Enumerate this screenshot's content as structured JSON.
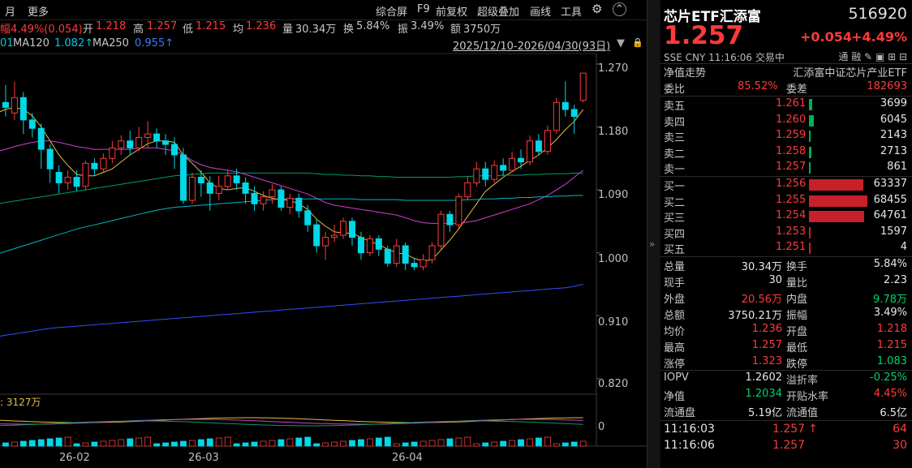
{
  "toolbar": {
    "left": [
      "月",
      "更多"
    ],
    "right": [
      "综合屏",
      "F9",
      "前复权",
      "超级叠加",
      "画线",
      "工具"
    ],
    "gear_icon": "gear-icon",
    "up_icon": "up-arrow-icon"
  },
  "quote_line": {
    "change_partial": "幅4.49%(0.054)",
    "open_label": "开",
    "open": "1.218",
    "high_label": "高",
    "high": "1.257",
    "low_label": "低",
    "low": "1.215",
    "avg_label": "均",
    "avg": "1.236",
    "vol_label": "量",
    "vol": "30.34万",
    "turn_label": "换",
    "turn": "5.84%",
    "amp_label": "振",
    "amp": "3.49%",
    "amt_label": "额",
    "amt": "3750万"
  },
  "ma_line": {
    "ma60_partial": "01",
    "ma120_label": "MA120",
    "ma120": "1.082↑",
    "ma250_label": "MA250",
    "ma250": "0.955↑",
    "range": "2025/12/10-2026/04/30(93日)"
  },
  "y_axis": [
    "1.270",
    "1.180",
    "1.090",
    "1.000",
    "0.910",
    "0.820"
  ],
  "x_axis": [
    "26-02",
    "26-03",
    "26-04"
  ],
  "volume": {
    "label": ": 3127万",
    "zero": "0"
  },
  "chart_data": {
    "type": "candlestick",
    "ylim": [
      0.8,
      1.285
    ],
    "candles": [
      [
        1.19,
        1.215,
        1.18,
        1.232
      ],
      [
        1.215,
        1.208,
        1.195,
        1.24
      ],
      [
        1.2,
        1.222,
        1.19,
        1.245
      ],
      [
        1.222,
        1.19,
        1.17,
        1.23
      ],
      [
        1.19,
        1.178,
        1.165,
        1.2
      ],
      [
        1.178,
        1.148,
        1.12,
        1.185
      ],
      [
        1.148,
        1.12,
        1.1,
        1.155
      ],
      [
        1.115,
        1.1,
        1.085,
        1.125
      ],
      [
        1.1,
        1.108,
        1.09,
        1.118
      ],
      [
        1.108,
        1.095,
        1.088,
        1.118
      ],
      [
        1.095,
        1.128,
        1.09,
        1.132
      ],
      [
        1.128,
        1.12,
        1.11,
        1.135
      ],
      [
        1.12,
        1.135,
        1.115,
        1.142
      ],
      [
        1.135,
        1.15,
        1.128,
        1.16
      ],
      [
        1.15,
        1.16,
        1.14,
        1.168
      ],
      [
        1.16,
        1.15,
        1.14,
        1.175
      ],
      [
        1.15,
        1.165,
        1.145,
        1.18
      ],
      [
        1.165,
        1.17,
        1.15,
        1.188
      ],
      [
        1.17,
        1.16,
        1.15,
        1.178
      ],
      [
        1.16,
        1.155,
        1.14,
        1.17
      ],
      [
        1.155,
        1.14,
        1.12,
        1.165
      ],
      [
        1.14,
        1.075,
        1.07,
        1.15
      ],
      [
        1.075,
        1.108,
        1.07,
        1.115
      ],
      [
        1.108,
        1.1,
        1.08,
        1.118
      ],
      [
        1.1,
        1.085,
        1.06,
        1.11
      ],
      [
        1.085,
        1.095,
        1.075,
        1.11
      ],
      [
        1.095,
        1.11,
        1.09,
        1.118
      ],
      [
        1.11,
        1.1,
        1.09,
        1.12
      ],
      [
        1.1,
        1.085,
        1.07,
        1.108
      ],
      [
        1.085,
        1.07,
        1.06,
        1.095
      ],
      [
        1.07,
        1.08,
        1.06,
        1.088
      ],
      [
        1.08,
        1.09,
        1.07,
        1.098
      ],
      [
        1.09,
        1.065,
        1.06,
        1.095
      ],
      [
        1.065,
        1.078,
        1.055,
        1.085
      ],
      [
        1.078,
        1.06,
        1.05,
        1.085
      ],
      [
        1.06,
        1.04,
        1.03,
        1.068
      ],
      [
        1.04,
        1.01,
        1.0,
        1.048
      ],
      [
        1.01,
        1.022,
        0.99,
        1.03
      ],
      [
        1.022,
        1.025,
        1.015,
        1.04
      ],
      [
        1.025,
        1.045,
        1.02,
        1.05
      ],
      [
        1.045,
        1.022,
        1.01,
        1.05
      ],
      [
        1.022,
        1.0,
        0.99,
        1.03
      ],
      [
        1.0,
        1.02,
        0.995,
        1.025
      ],
      [
        1.02,
        1.005,
        0.995,
        1.025
      ],
      [
        1.005,
        0.985,
        0.98,
        1.01
      ],
      [
        0.985,
        1.01,
        0.98,
        1.02
      ],
      [
        1.01,
        0.985,
        0.975,
        1.015
      ],
      [
        0.985,
        0.98,
        0.975,
        0.992
      ],
      [
        0.98,
        0.99,
        0.975,
        0.998
      ],
      [
        0.99,
        1.01,
        0.985,
        1.015
      ],
      [
        1.01,
        1.055,
        1.005,
        1.06
      ],
      [
        1.055,
        1.04,
        1.03,
        1.06
      ],
      [
        1.04,
        1.08,
        1.035,
        1.085
      ],
      [
        1.08,
        1.1,
        1.075,
        1.11
      ],
      [
        1.1,
        1.12,
        1.095,
        1.13
      ],
      [
        1.12,
        1.105,
        1.095,
        1.13
      ],
      [
        1.105,
        1.125,
        1.1,
        1.132
      ],
      [
        1.125,
        1.118,
        1.11,
        1.135
      ],
      [
        1.118,
        1.135,
        1.115,
        1.145
      ],
      [
        1.135,
        1.13,
        1.12,
        1.148
      ],
      [
        1.13,
        1.16,
        1.125,
        1.168
      ],
      [
        1.16,
        1.145,
        1.14,
        1.17
      ],
      [
        1.145,
        1.175,
        1.14,
        1.182
      ],
      [
        1.175,
        1.215,
        1.17,
        1.222
      ],
      [
        1.215,
        1.205,
        1.195,
        1.245
      ],
      [
        1.205,
        1.195,
        1.17,
        1.212
      ],
      [
        1.218,
        1.257,
        1.215,
        1.257
      ]
    ],
    "ma_series": [
      {
        "color": "#e0c040",
        "values": [
          1.2,
          1.205,
          1.208,
          1.205,
          1.196,
          1.18,
          1.16,
          1.14,
          1.125,
          1.112,
          1.11,
          1.11,
          1.115,
          1.12,
          1.13,
          1.14,
          1.148,
          1.156,
          1.16,
          1.16,
          1.158,
          1.14,
          1.128,
          1.115,
          1.1,
          1.092,
          1.09,
          1.092,
          1.093,
          1.088,
          1.082,
          1.078,
          1.076,
          1.075,
          1.07,
          1.062,
          1.048,
          1.038,
          1.03,
          1.028,
          1.028,
          1.022,
          1.016,
          1.012,
          1.005,
          1.0,
          0.998,
          0.992,
          0.988,
          0.99,
          1.004,
          1.018,
          1.034,
          1.052,
          1.07,
          1.088,
          1.098,
          1.108,
          1.116,
          1.124,
          1.132,
          1.14,
          1.15,
          1.162,
          1.176,
          1.188,
          1.205
        ]
      },
      {
        "color": "#d040d0",
        "values": [
          1.145,
          1.148,
          1.152,
          1.155,
          1.158,
          1.16,
          1.16,
          1.158,
          1.155,
          1.152,
          1.15,
          1.148,
          1.148,
          1.148,
          1.148,
          1.148,
          1.15,
          1.15,
          1.15,
          1.148,
          1.146,
          1.14,
          1.132,
          1.126,
          1.122,
          1.12,
          1.118,
          1.116,
          1.112,
          1.108,
          1.104,
          1.1,
          1.096,
          1.092,
          1.088,
          1.084,
          1.078,
          1.072,
          1.068,
          1.066,
          1.064,
          1.062,
          1.06,
          1.058,
          1.056,
          1.054,
          1.05,
          1.046,
          1.043,
          1.042,
          1.042,
          1.042,
          1.042,
          1.044,
          1.046,
          1.05,
          1.054,
          1.058,
          1.062,
          1.066,
          1.07,
          1.076,
          1.082,
          1.09,
          1.098,
          1.108,
          1.118
        ]
      },
      {
        "color": "#00a060",
        "values": [
          1.07,
          1.072,
          1.074,
          1.076,
          1.078,
          1.08,
          1.082,
          1.084,
          1.086,
          1.088,
          1.09,
          1.092,
          1.094,
          1.096,
          1.098,
          1.1,
          1.102,
          1.104,
          1.106,
          1.108,
          1.11,
          1.111,
          1.112,
          1.113,
          1.114,
          1.114,
          1.114,
          1.114,
          1.114,
          1.114,
          1.114,
          1.114,
          1.114,
          1.114,
          1.114,
          1.114,
          1.113,
          1.112,
          1.112,
          1.111,
          1.111,
          1.11,
          1.11,
          1.109,
          1.109,
          1.108,
          1.108,
          1.108,
          1.108,
          1.108,
          1.108,
          1.108,
          1.109,
          1.109,
          1.11,
          1.11,
          1.11,
          1.111,
          1.111,
          1.111,
          1.112,
          1.112,
          1.113,
          1.113,
          1.113,
          1.114,
          1.114
        ]
      },
      {
        "color": "#00b8c8",
        "values": [
          0.998,
          1.002,
          1.006,
          1.01,
          1.014,
          1.018,
          1.022,
          1.026,
          1.03,
          1.034,
          1.037,
          1.04,
          1.043,
          1.046,
          1.049,
          1.052,
          1.055,
          1.058,
          1.061,
          1.063,
          1.065,
          1.066,
          1.067,
          1.068,
          1.069,
          1.07,
          1.071,
          1.072,
          1.073,
          1.074,
          1.075,
          1.076,
          1.077,
          1.077,
          1.077,
          1.077,
          1.077,
          1.077,
          1.077,
          1.077,
          1.077,
          1.076,
          1.076,
          1.076,
          1.076,
          1.076,
          1.075,
          1.075,
          1.075,
          1.075,
          1.075,
          1.075,
          1.075,
          1.076,
          1.076,
          1.077,
          1.077,
          1.078,
          1.078,
          1.079,
          1.079,
          1.08,
          1.08,
          1.081,
          1.081,
          1.082,
          1.082
        ]
      },
      {
        "color": "#3050ff",
        "values": [
          0.88,
          0.882,
          0.884,
          0.886,
          0.888,
          0.89,
          0.892,
          0.893,
          0.894,
          0.895,
          0.896,
          0.897,
          0.898,
          0.899,
          0.9,
          0.901,
          0.902,
          0.903,
          0.904,
          0.905,
          0.906,
          0.907,
          0.908,
          0.909,
          0.91,
          0.911,
          0.912,
          0.913,
          0.914,
          0.915,
          0.916,
          0.917,
          0.918,
          0.919,
          0.92,
          0.921,
          0.922,
          0.923,
          0.924,
          0.925,
          0.926,
          0.927,
          0.928,
          0.929,
          0.93,
          0.931,
          0.932,
          0.933,
          0.934,
          0.935,
          0.936,
          0.937,
          0.938,
          0.939,
          0.94,
          0.941,
          0.942,
          0.943,
          0.944,
          0.945,
          0.946,
          0.947,
          0.948,
          0.949,
          0.95,
          0.952,
          0.955
        ]
      }
    ]
  },
  "quote": {
    "name": "芯片ETF汇添富",
    "code": "516920",
    "price": "1.257",
    "change": "+0.054",
    "pct": "+4.49%",
    "meta": "SSE  CNY  11:16:06  交易中",
    "tools": "通 融 ✎ ▣ ⊞ ⊟",
    "nav_trend": "净值走势",
    "fund_full": "汇添富中证芯片产业ETF",
    "wei_bi_label": "委比",
    "wei_bi": "85.52%",
    "wei_cha_label": "委差",
    "wei_cha": "182693"
  },
  "asks": [
    {
      "label": "卖五",
      "price": "1.261",
      "vol": "3699"
    },
    {
      "label": "卖四",
      "price": "1.260",
      "vol": "6045"
    },
    {
      "label": "卖三",
      "price": "1.259",
      "vol": "2143"
    },
    {
      "label": "卖二",
      "price": "1.258",
      "vol": "2713"
    },
    {
      "label": "卖一",
      "price": "1.257",
      "vol": "861"
    }
  ],
  "bids": [
    {
      "label": "买一",
      "price": "1.256",
      "vol": "63337"
    },
    {
      "label": "买二",
      "price": "1.255",
      "vol": "68455"
    },
    {
      "label": "买三",
      "price": "1.254",
      "vol": "64761"
    },
    {
      "label": "买四",
      "price": "1.253",
      "vol": "1597"
    },
    {
      "label": "买五",
      "price": "1.251",
      "vol": "4"
    }
  ],
  "stats": [
    {
      "l1": "总量",
      "v1": "30.34万",
      "c1": "white",
      "l2": "换手",
      "v2": "5.84%",
      "c2": "white"
    },
    {
      "l1": "现手",
      "v1": "30",
      "c1": "white",
      "l2": "量比",
      "v2": "2.23",
      "c2": "white"
    },
    {
      "l1": "外盘",
      "v1": "20.56万",
      "c1": "red",
      "l2": "内盘",
      "v2": "9.78万",
      "c2": "green"
    },
    {
      "l1": "总额",
      "v1": "3750.21万",
      "c1": "white",
      "l2": "振幅",
      "v2": "3.49%",
      "c2": "white"
    },
    {
      "l1": "均价",
      "v1": "1.236",
      "c1": "red",
      "l2": "开盘",
      "v2": "1.218",
      "c2": "red"
    },
    {
      "l1": "最高",
      "v1": "1.257",
      "c1": "red",
      "l2": "最低",
      "v2": "1.215",
      "c2": "red"
    },
    {
      "l1": "涨停",
      "v1": "1.323",
      "c1": "red",
      "l2": "跌停",
      "v2": "1.083",
      "c2": "green"
    }
  ],
  "stats2": [
    {
      "l1": "IOPV",
      "v1": "1.2602",
      "c1": "white",
      "l2": "溢折率",
      "v2": "-0.25%",
      "c2": "green"
    },
    {
      "l1": "净值",
      "v1": "1.2034",
      "c1": "green",
      "l2": "开贴水率",
      "v2": "4.45%",
      "c2": "red"
    },
    {
      "l1": "流通盘",
      "v1": "5.19亿",
      "c1": "white",
      "l2": "流通值",
      "v2": "6.5亿",
      "c2": "white"
    }
  ],
  "ticks": [
    {
      "time": "11:16:03",
      "price": "1.257",
      "arrow": "↑",
      "vol": "64"
    },
    {
      "time": "11:16:06",
      "price": "1.257",
      "arrow": "",
      "vol": "30"
    }
  ]
}
